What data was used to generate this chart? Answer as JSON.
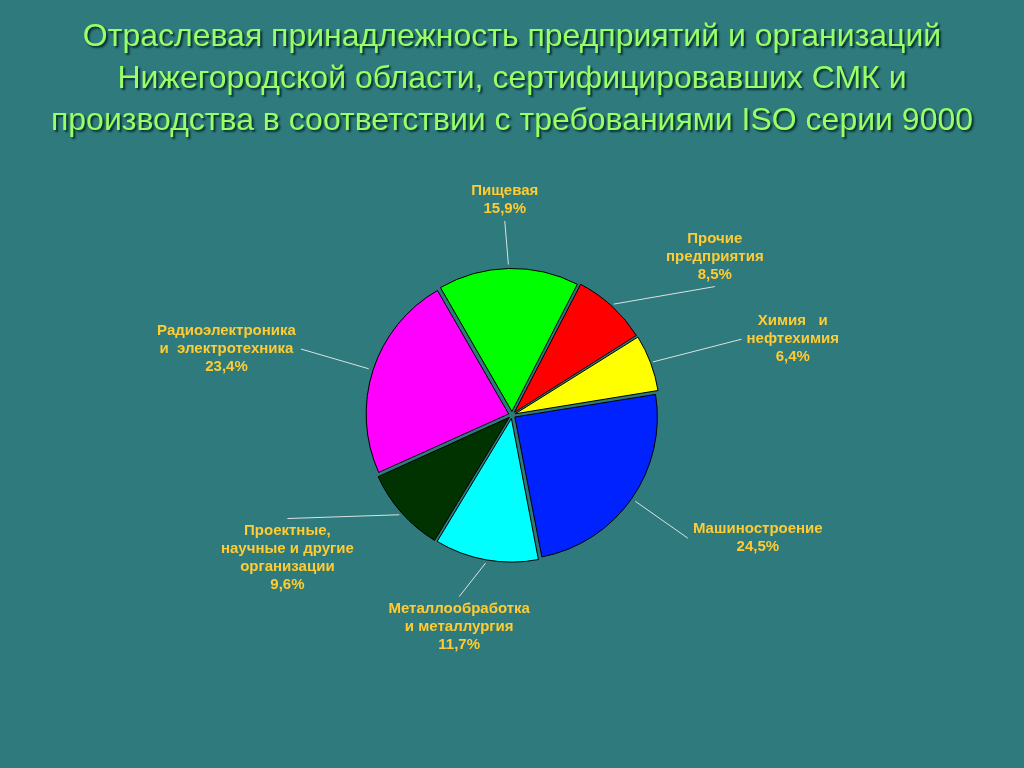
{
  "chart_data": {
    "type": "pie",
    "title": "Отраслевая принадлежность предприятий и организаций\nНижегородской области, сертифицировавших СМК и\nпроизводства в соответствии с требованиями ISO серии 9000",
    "categories": [
      "Пищевая",
      "Прочие\nпредприятия",
      "Химия   и\nнефтехимия",
      "Машиностроение",
      "Металлообработка\nи металлургия",
      "Проектные,\nнаучные и другие\nорганизации",
      "Радиоэлектроника\nи  электротехника"
    ],
    "values": [
      15.9,
      8.5,
      6.4,
      24.5,
      11.7,
      9.6,
      23.4
    ],
    "value_labels": [
      "15,9%",
      "8,5%",
      "6,4%",
      "24,5%",
      "11,7%",
      "9,6%",
      "23,4%"
    ],
    "colors": [
      "#00ff00",
      "#ff0000",
      "#ffff00",
      "#0022ff",
      "#00ffff",
      "#003300",
      "#ff00ff"
    ]
  }
}
